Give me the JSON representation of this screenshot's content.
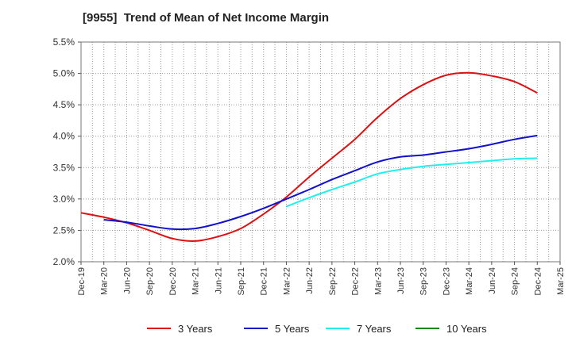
{
  "chart_data": {
    "type": "line",
    "title": "[9955]  Trend of Mean of Net Income Margin",
    "xlabel": "",
    "ylabel": "",
    "ylim": [
      2.0,
      5.5
    ],
    "yticks": [
      "2.0%",
      "2.5%",
      "3.0%",
      "3.5%",
      "4.0%",
      "4.5%",
      "5.0%",
      "5.5%"
    ],
    "categories": [
      "Dec-19",
      "Mar-20",
      "Jun-20",
      "Sep-20",
      "Dec-20",
      "Mar-21",
      "Jun-21",
      "Sep-21",
      "Dec-21",
      "Mar-22",
      "Jun-22",
      "Sep-22",
      "Dec-22",
      "Mar-23",
      "Jun-23",
      "Sep-23",
      "Dec-23",
      "Mar-24",
      "Jun-24",
      "Sep-24",
      "Dec-24",
      "Mar-25"
    ],
    "grid": true,
    "legend_position": "bottom",
    "series": [
      {
        "name": "3 Years",
        "color": "#dd1111",
        "values": [
          2.78,
          2.71,
          2.62,
          2.5,
          2.37,
          2.33,
          2.4,
          2.53,
          2.76,
          3.03,
          3.35,
          3.65,
          3.95,
          4.3,
          4.6,
          4.82,
          4.97,
          5.01,
          4.96,
          4.87,
          4.69,
          null
        ]
      },
      {
        "name": "5 Years",
        "color": "#1111cc",
        "values": [
          null,
          2.67,
          2.63,
          2.57,
          2.52,
          2.53,
          2.61,
          2.72,
          2.85,
          3.0,
          3.15,
          3.31,
          3.45,
          3.59,
          3.67,
          3.7,
          3.75,
          3.8,
          3.87,
          3.95,
          4.01,
          null
        ]
      },
      {
        "name": "7 Years",
        "color": "#22eeee",
        "values": [
          null,
          null,
          null,
          null,
          null,
          null,
          null,
          null,
          null,
          2.88,
          3.02,
          3.15,
          3.27,
          3.4,
          3.47,
          3.52,
          3.55,
          3.58,
          3.61,
          3.64,
          3.65,
          null
        ]
      },
      {
        "name": "10 Years",
        "color": "#118811",
        "values": [
          null,
          null,
          null,
          null,
          null,
          null,
          null,
          null,
          null,
          null,
          null,
          null,
          null,
          null,
          null,
          null,
          null,
          null,
          null,
          null,
          null,
          null
        ]
      }
    ]
  }
}
